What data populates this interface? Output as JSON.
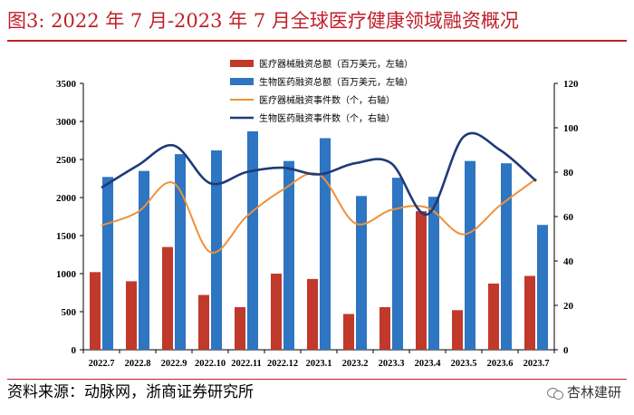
{
  "page": {
    "title": "图3:   2022 年 7 月-2023 年 7 月全球医疗健康领域融资概况",
    "source": "资料来源：动脉网，浙商证券研究所",
    "watermark": "杏林建研"
  },
  "colors": {
    "title": "#c0202a",
    "medical_device_amount": "#c0392b",
    "biopharma_amount": "#2e75c2",
    "medical_device_events": "#f0913a",
    "biopharma_events": "#1f3a7a"
  },
  "chart_data": {
    "type": "bar",
    "categories": [
      "2022.7",
      "2022.8",
      "2022.9",
      "2022.10",
      "2022.11",
      "2022.12",
      "2023.1",
      "2023.2",
      "2023.3",
      "2023.4",
      "2023.5",
      "2023.6",
      "2023.7"
    ],
    "left_axis": {
      "min": 0,
      "max": 3500,
      "step": 500,
      "ticks": [
        "0",
        "500",
        "1000",
        "1500",
        "2000",
        "2500",
        "3000",
        "3500"
      ]
    },
    "right_axis": {
      "min": 0,
      "max": 120,
      "step": 20,
      "ticks": [
        "0",
        "20",
        "40",
        "60",
        "80",
        "100",
        "120"
      ]
    },
    "series": [
      {
        "name": "医疗器械融资总额（百万美元，左轴）",
        "kind": "bar",
        "axis": "left",
        "color": "#c0392b",
        "values": [
          1020,
          900,
          1350,
          720,
          560,
          1000,
          930,
          470,
          560,
          1820,
          520,
          870,
          970
        ]
      },
      {
        "name": "生物医药融资总额（百万美元，左轴）",
        "kind": "bar",
        "axis": "left",
        "color": "#2e75c2",
        "values": [
          2270,
          2350,
          2570,
          2620,
          2870,
          2480,
          2780,
          2020,
          2260,
          2010,
          2480,
          2450,
          1640
        ]
      },
      {
        "name": "医疗器械融资事件数（个，右轴）",
        "kind": "line",
        "axis": "right",
        "color": "#f0913a",
        "values": [
          56,
          62,
          75,
          44,
          60,
          72,
          79,
          57,
          63,
          64,
          52,
          65,
          77
        ]
      },
      {
        "name": "生物医药融资事件数（个，右轴）",
        "kind": "line",
        "axis": "right",
        "color": "#1f3a7a",
        "values": [
          73,
          83,
          92,
          75,
          80,
          82,
          79,
          84,
          84,
          61,
          96,
          90,
          76
        ]
      }
    ],
    "legend_position": "top-center",
    "grid": false
  }
}
